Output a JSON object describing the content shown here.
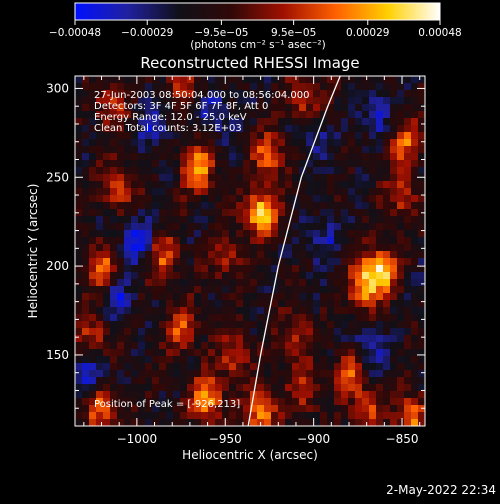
{
  "chart_data": {
    "type": "heatmap",
    "title": "Reconstructed RHESSI Image",
    "xlabel": "Heliocentric X (arcsec)",
    "ylabel": "Heliocentric Y (arcsec)",
    "xlim": [
      -1035,
      -837
    ],
    "ylim": [
      110,
      307
    ],
    "x_ticks": [
      -1000,
      -950,
      -900,
      -850
    ],
    "x_tick_labels": [
      "−1000",
      "−950",
      "−900",
      "−850"
    ],
    "y_ticks": [
      150,
      200,
      250,
      300
    ],
    "y_tick_labels": [
      "150",
      "200",
      "250",
      "300"
    ],
    "colorbar": {
      "range": [
        -0.00048,
        0.00048
      ],
      "ticks": [
        -0.00048,
        -0.00029,
        -9.5e-05,
        9.5e-05,
        0.00029,
        0.00048
      ],
      "tick_labels": [
        "−0.00048",
        "−0.00029",
        "−9.5e−05",
        "9.5e−05",
        "0.00029",
        "0.00048"
      ],
      "unit_label": "(photons cm⁻² s⁻¹ asec⁻²)",
      "colors": [
        "#0010ff",
        "#2020a0",
        "#101018",
        "#300808",
        "#a01000",
        "#ff6000",
        "#ffd000",
        "#ffffff"
      ]
    },
    "annotations": [
      "27-Jun-2003 08:50:04.000 to 08:56:04.000",
      "Detectors: 3F 4F 5F 6F 7F 8F, Att 0",
      "Energy Range: 12.0 - 25.0 keV",
      "Clean     Total counts: 3.12E+03"
    ],
    "peak_label": "Position of Peak = [-926,213]",
    "limb_curve": [
      [
        -937,
        110
      ],
      [
        -930,
        150
      ],
      [
        -920,
        200
      ],
      [
        -907,
        250
      ],
      [
        -892,
        290
      ],
      [
        -885,
        307
      ]
    ],
    "blobs": [
      {
        "x": -930,
        "y": 230,
        "v": 1.0
      },
      {
        "x": -965,
        "y": 255,
        "v": 0.85
      },
      {
        "x": -925,
        "y": 262,
        "v": 0.7
      },
      {
        "x": -1010,
        "y": 245,
        "v": 0.6
      },
      {
        "x": -862,
        "y": 198,
        "v": 0.95
      },
      {
        "x": -872,
        "y": 188,
        "v": 0.8
      },
      {
        "x": -848,
        "y": 270,
        "v": 0.6
      },
      {
        "x": -850,
        "y": 240,
        "v": 0.55
      },
      {
        "x": -1020,
        "y": 200,
        "v": 0.6
      },
      {
        "x": -985,
        "y": 205,
        "v": 0.55
      },
      {
        "x": -950,
        "y": 205,
        "v": 0.45
      },
      {
        "x": -975,
        "y": 165,
        "v": 0.6
      },
      {
        "x": -1025,
        "y": 160,
        "v": 0.55
      },
      {
        "x": -945,
        "y": 150,
        "v": 0.55
      },
      {
        "x": -960,
        "y": 125,
        "v": 0.8
      },
      {
        "x": -1020,
        "y": 120,
        "v": 0.7
      },
      {
        "x": -930,
        "y": 118,
        "v": 0.8
      },
      {
        "x": -905,
        "y": 130,
        "v": 0.45
      },
      {
        "x": -880,
        "y": 140,
        "v": 0.6
      },
      {
        "x": -870,
        "y": 118,
        "v": 0.55
      },
      {
        "x": -845,
        "y": 115,
        "v": 0.7
      },
      {
        "x": -910,
        "y": 160,
        "v": 0.5
      },
      {
        "x": -905,
        "y": 295,
        "v": 0.55
      },
      {
        "x": -1015,
        "y": 290,
        "v": 0.5
      },
      {
        "x": -975,
        "y": 300,
        "v": 0.4
      },
      {
        "x": -1000,
        "y": 215,
        "v": -0.5
      },
      {
        "x": -990,
        "y": 280,
        "v": -0.45
      },
      {
        "x": -955,
        "y": 285,
        "v": -0.45
      },
      {
        "x": -900,
        "y": 270,
        "v": -0.35
      },
      {
        "x": -1025,
        "y": 140,
        "v": -0.5
      },
      {
        "x": -870,
        "y": 155,
        "v": -0.45
      },
      {
        "x": -895,
        "y": 215,
        "v": -0.35
      },
      {
        "x": -1010,
        "y": 180,
        "v": -0.4
      },
      {
        "x": -865,
        "y": 285,
        "v": -0.4
      }
    ]
  },
  "footer": {
    "timestamp": "2-May-2022 22:34"
  }
}
